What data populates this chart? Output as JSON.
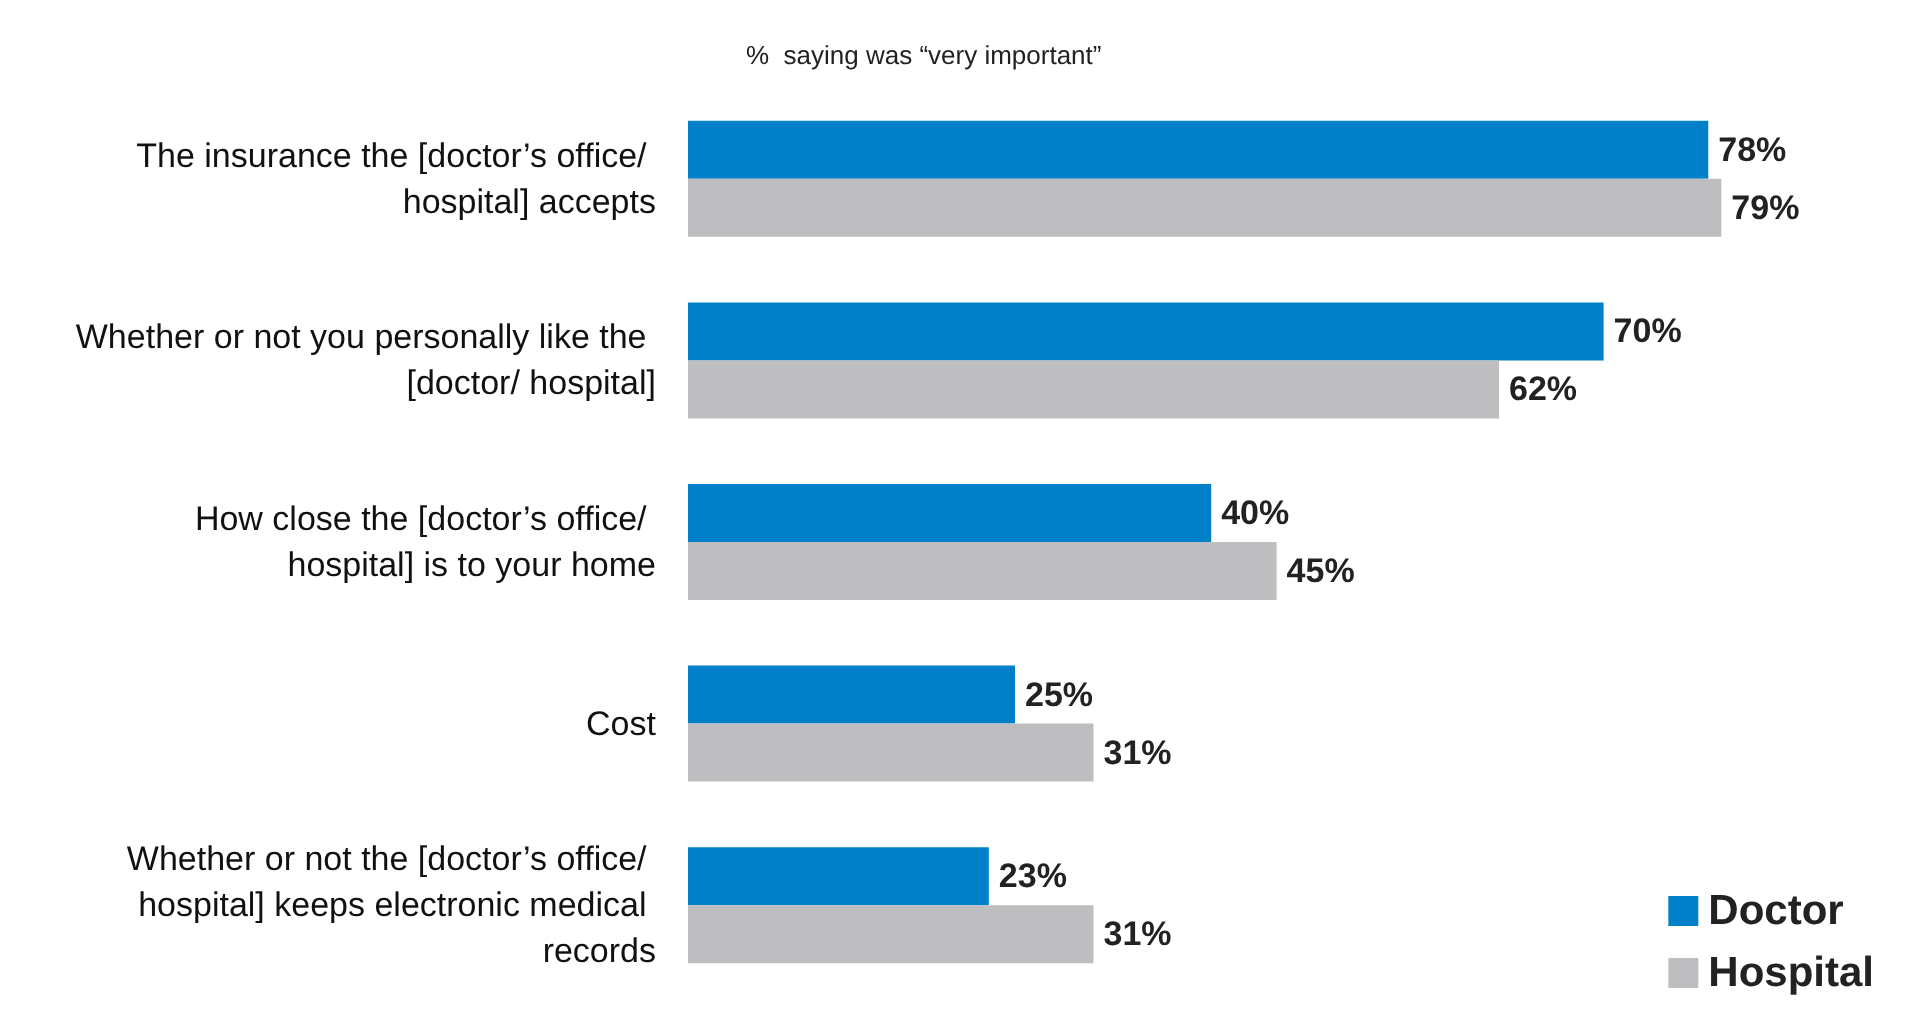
{
  "chart_data": {
    "type": "bar",
    "orientation": "horizontal",
    "subtitle": "%  saying was “very important”",
    "categories": [
      "The insurance the [doctor’s office/ hospital] accepts",
      "Whether or not you personally like the [doctor/ hospital]",
      "How close the [doctor’s office/ hospital] is to your home",
      "Cost",
      "Whether or not the [doctor’s office/ hospital] keeps electronic medical records"
    ],
    "series": [
      {
        "name": "Doctor",
        "color": "#0080c8",
        "values": [
          78,
          70,
          40,
          25,
          23
        ],
        "value_labels": [
          "78%",
          "70%",
          "40%",
          "25%",
          "23%"
        ]
      },
      {
        "name": "Hospital",
        "color": "#bebec0",
        "values": [
          79,
          62,
          45,
          31,
          31
        ],
        "value_labels": [
          "79%",
          "62%",
          "45%",
          "31%",
          "31%"
        ]
      }
    ],
    "legend": "bottom right"
  }
}
